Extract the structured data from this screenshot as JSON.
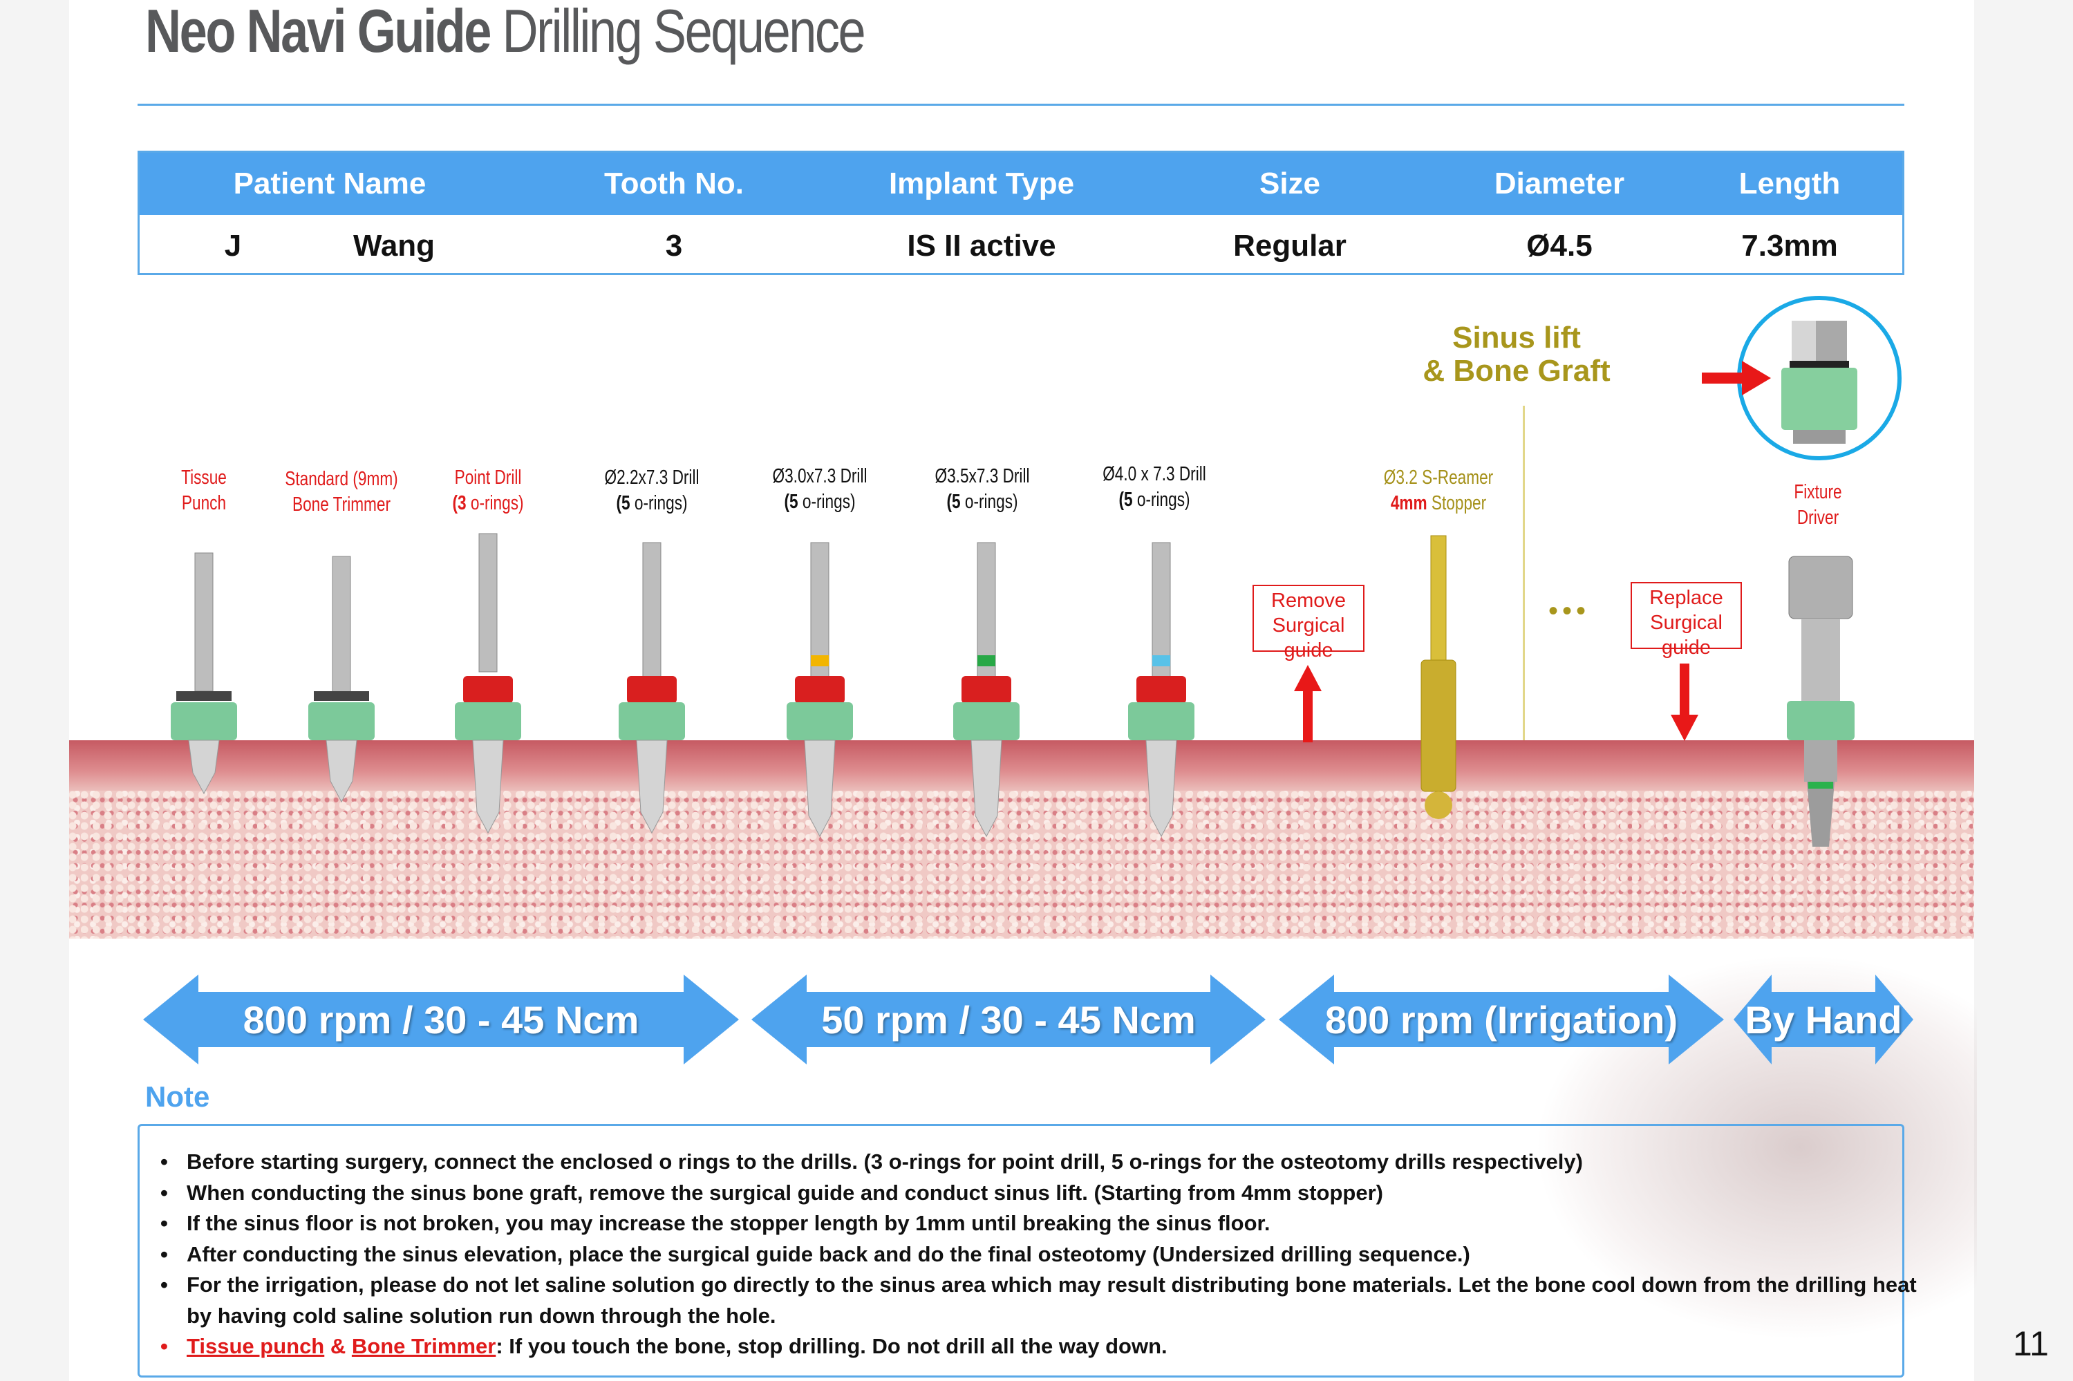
{
  "title": {
    "bold": "Neo Navi Guide",
    "regular": "Drilling Sequence"
  },
  "table": {
    "headers": [
      "Patient Name",
      "Tooth No.",
      "Implant Type",
      "Size",
      "Diameter",
      "Length"
    ],
    "row": {
      "first_name": "J",
      "last_name": "Wang",
      "tooth": "3",
      "implant_type": "IS II active",
      "size": "Regular",
      "diameter": "Ø4.5",
      "length": "7.3mm"
    }
  },
  "tools": [
    {
      "line1": "Tissue",
      "line2": "Punch",
      "color": "red",
      "marker": ""
    },
    {
      "line1": "Standard (9mm)",
      "line2": "Bone Trimmer",
      "color": "red",
      "marker": ""
    },
    {
      "line1": "Point Drill",
      "line2_bold": "(3",
      "line2": " o-rings)",
      "color": "red",
      "marker": ""
    },
    {
      "line1": "Ø2.2x7.3 Drill",
      "line2_bold": "(5",
      "line2": " o-rings)",
      "color": "black",
      "marker": ""
    },
    {
      "line1": "Ø3.0x7.3 Drill",
      "line2_bold": "(5",
      "line2": " o-rings)",
      "color": "black",
      "marker": "#f2b500"
    },
    {
      "line1": "Ø3.5x7.3 Drill",
      "line2_bold": "(5",
      "line2": " o-rings)",
      "color": "black",
      "marker": "#27a846"
    },
    {
      "line1": "Ø4.0 x 7.3 Drill",
      "line2_bold": "(5",
      "line2": " o-rings)",
      "color": "black",
      "marker": "#58c2e8"
    }
  ],
  "reamer": {
    "line1": "Ø3.2 S-Reamer",
    "line2_bold": "4mm",
    "line2": " Stopper"
  },
  "fixture": {
    "line1": "Fixture",
    "line2": "Driver"
  },
  "sinus": {
    "line1": "Sinus lift",
    "line2": "& Bone Graft"
  },
  "remove_guide": {
    "l1": "Remove",
    "l2": "Surgical",
    "l3": "guide"
  },
  "replace_guide": {
    "l1": "Replace",
    "l2": "Surgical",
    "l3": "guide"
  },
  "ellipsis": "•••",
  "speeds": [
    "800 rpm / 30 - 45 Ncm",
    "50 rpm / 30 - 45 Ncm",
    "800 rpm (Irrigation)",
    "By Hand"
  ],
  "note": {
    "heading": "Note",
    "items": [
      "Before starting surgery, connect the enclosed o rings to the drills. (3 o-rings for point drill, 5 o-rings for the osteotomy drills respectively)",
      "When conducting the sinus bone graft, remove the surgical guide and conduct sinus lift. (Starting from 4mm stopper)",
      "If the sinus floor is not broken, you may increase the stopper length by 1mm until breaking the sinus floor.",
      "After conducting the sinus elevation, place the surgical guide back and do the final osteotomy (Undersized drilling sequence.)",
      "For the irrigation, please do not let saline solution go directly to the sinus area which may result distributing bone materials.  Let the bone cool down from the drilling heat",
      "by having cold saline solution run down through the hole."
    ],
    "warning": {
      "link1": "Tissue punch",
      "amp": " & ",
      "link2": "Bone Trimmer",
      "text": ": If you touch the bone, stop drilling. Do not drill all the way down."
    }
  },
  "page_number": "11",
  "colors": {
    "accent": "#4ea3ee",
    "red": "#e01b1b",
    "olive": "#a8961c",
    "collar": "#7cc99a"
  }
}
